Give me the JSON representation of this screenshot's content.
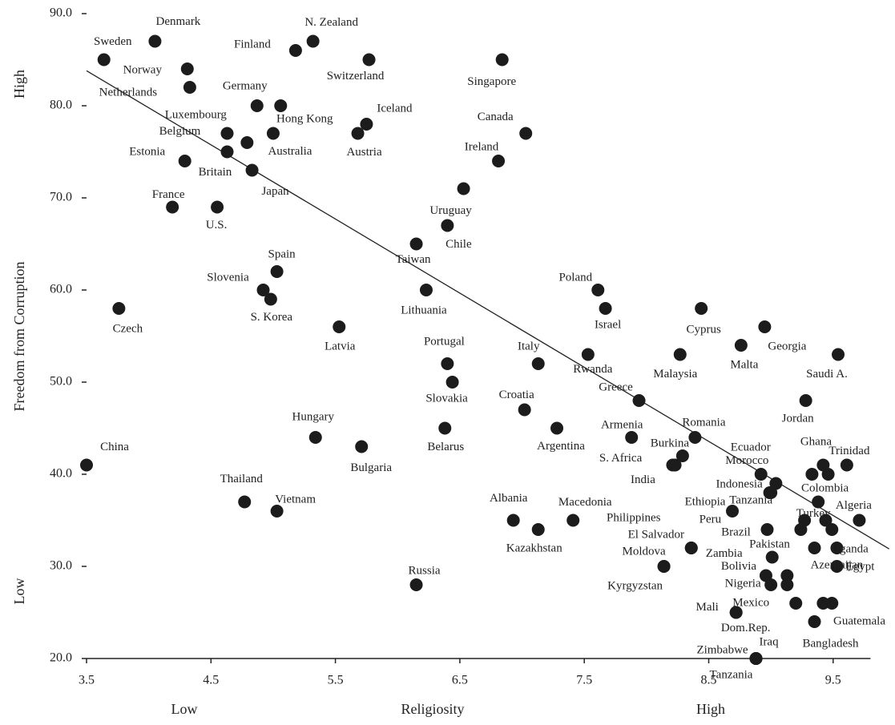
{
  "chart_data": {
    "type": "scatter",
    "xlabel": "Religiosity",
    "ylabel": "Freedom from Corruption",
    "x_low_label": "Low",
    "x_high_label": "High",
    "y_low_label": "Low",
    "y_high_label": "High",
    "color": "#1c1c1c",
    "xlim": [
      3.5,
      9.8
    ],
    "ylim": [
      20,
      90
    ],
    "xticks": [
      3.5,
      4.5,
      5.5,
      6.5,
      7.5,
      8.5,
      9.5
    ],
    "yticks": [
      {
        "value": 20,
        "label": "20.0"
      },
      {
        "value": 30,
        "label": "30.0"
      },
      {
        "value": 40,
        "label": "40.0"
      },
      {
        "value": 50,
        "label": "50.0"
      },
      {
        "value": 60,
        "label": "60.0"
      },
      {
        "value": 70,
        "label": "70.0"
      },
      {
        "value": 80,
        "label": "80.0"
      },
      {
        "value": 90,
        "label": "90.0"
      }
    ],
    "point_labels": [
      "Sweden",
      "Denmark",
      "Norway",
      "Netherlands",
      "Finland",
      "N. Zealand",
      "Switzerland",
      "Singapore",
      "Germany",
      "Hong Kong",
      "Luxembourg",
      "Belgium",
      "Australia",
      "Estonia",
      "Britain",
      "Japan",
      "Iceland",
      "Austria",
      "Canada",
      "Ireland",
      "France",
      "U.S.",
      "Uruguay",
      "Chile",
      "Taiwan",
      "Lithuania",
      "Czech",
      "China",
      "Spain",
      "Slovenia",
      "S. Korea",
      "Latvia",
      "Poland",
      "Israel",
      "Cyprus",
      "Georgia",
      "Malta",
      "Malaysia",
      "Rwanda",
      "Saudi A.",
      "Portugal",
      "Slovakia",
      "Italy",
      "Greece",
      "Jordan",
      "Croatia",
      "Argentina",
      "Belarus",
      "Hungary",
      "Bulgaria",
      "Armenia",
      "Romania",
      "Burkina",
      "S. Africa",
      "India",
      "Ecuador",
      "Morocco",
      "Indonesia",
      "Tanzania",
      "Ghana",
      "Trinidad",
      null,
      "Colombia",
      "Ethiopia",
      "Turkey",
      "Algeria",
      null,
      null,
      "Peru",
      "Brazil",
      null,
      "El Salvador",
      "Philippines",
      "Zambia",
      "Pakistan",
      "Uganda",
      "Egypt",
      "Moldova",
      "Kyrgyzstan",
      "Bolivia",
      "Nigeria",
      null,
      "Azerbaijan",
      "Mexico",
      null,
      null,
      "Mali",
      "Dom.Rep.",
      "Guatemala",
      "Tanzania",
      "Zimbabwe",
      "Iraq",
      "Bangladesh",
      "Thailand",
      "Vietnam",
      "Albania",
      "Kazakhstan",
      "Macedonia",
      "Russia"
    ],
    "x": [
      3.64,
      4.05,
      4.31,
      4.33,
      5.18,
      5.32,
      5.77,
      6.84,
      4.87,
      5.06,
      4.79,
      4.63,
      5.0,
      4.29,
      4.63,
      4.83,
      5.75,
      5.68,
      7.03,
      6.81,
      4.19,
      4.55,
      6.53,
      6.4,
      6.15,
      6.23,
      3.76,
      3.5,
      5.03,
      4.92,
      4.98,
      5.53,
      7.61,
      7.67,
      8.44,
      8.95,
      8.76,
      8.27,
      7.53,
      9.54,
      6.4,
      6.44,
      7.13,
      7.94,
      9.28,
      7.02,
      7.28,
      6.38,
      5.34,
      5.71,
      7.88,
      8.39,
      8.29,
      8.23,
      8.21,
      8.92,
      9.04,
      8.99,
      9.0,
      9.33,
      9.61,
      9.42,
      9.46,
      8.69,
      9.27,
      9.71,
      9.38,
      9.44,
      9.24,
      8.97,
      9.49,
      8.36,
      8.36,
      9.01,
      9.35,
      9.53,
      9.53,
      8.14,
      8.14,
      8.96,
      9.0,
      9.13,
      9.13,
      9.2,
      9.42,
      9.49,
      8.72,
      8.72,
      9.35,
      8.88,
      8.88,
      8.88,
      8.88,
      4.77,
      5.03,
      6.93,
      7.13,
      7.41,
      6.15
    ],
    "values": [
      85,
      87,
      84,
      82,
      86,
      87,
      85,
      85,
      80,
      80,
      76,
      77,
      77,
      74,
      75,
      73,
      78,
      77,
      77,
      74,
      69,
      69,
      71,
      67,
      65,
      60,
      58,
      41,
      62,
      60,
      59,
      56,
      60,
      58,
      58,
      56,
      54,
      53,
      53,
      53,
      52,
      50,
      52,
      48,
      48,
      47,
      45,
      45,
      44,
      43,
      44,
      44,
      42,
      41,
      41,
      40,
      39,
      38,
      38,
      40,
      41,
      41,
      40,
      36,
      35,
      35,
      37,
      35,
      34,
      34,
      34,
      32,
      32,
      31,
      32,
      32,
      30,
      30,
      30,
      29,
      28,
      29,
      28,
      26,
      26,
      26,
      25,
      25,
      24,
      20,
      20,
      20,
      20,
      37,
      36,
      35,
      34,
      35,
      28
    ],
    "trend": {
      "x": [
        3.5,
        9.95
      ],
      "values": [
        83.8,
        31.9
      ]
    }
  }
}
